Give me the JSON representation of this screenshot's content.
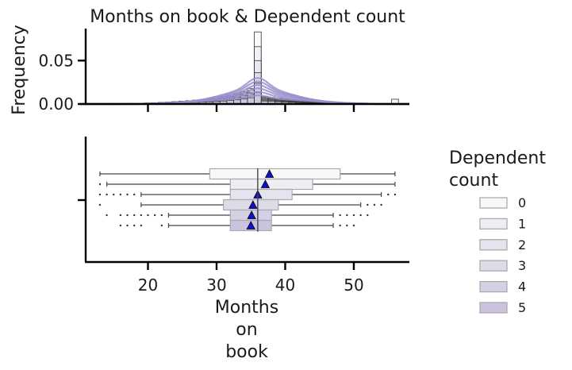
{
  "chart_data": {
    "type": "histogram_boxplot",
    "title": "Months on book & Dependent count",
    "hist": {
      "ylabel": "Frequency",
      "yticks": [
        "0.00",
        "0.05"
      ],
      "ylim": [
        0,
        0.085
      ]
    },
    "box": {
      "xlabel_lines": [
        "Months",
        "on",
        "book"
      ],
      "xticks": [
        20,
        30,
        40,
        50
      ],
      "xlim": [
        10.5,
        58
      ],
      "groups": [
        {
          "name": "0",
          "whislo": 13,
          "q1": 29,
          "med": 36,
          "q3": 48,
          "whishi": 56,
          "mean": 37.7,
          "fliers": []
        },
        {
          "name": "1",
          "whislo": 14,
          "q1": 32,
          "med": 36,
          "q3": 44,
          "whishi": 56,
          "mean": 37.1,
          "fliers": [
            13
          ]
        },
        {
          "name": "2",
          "whislo": 19,
          "q1": 32,
          "med": 36,
          "q3": 41,
          "whishi": 54,
          "mean": 36.0,
          "fliers": [
            13,
            14,
            15,
            16,
            17,
            18,
            55,
            56
          ]
        },
        {
          "name": "3",
          "whislo": 19,
          "q1": 31,
          "med": 36,
          "q3": 39,
          "whishi": 51,
          "mean": 35.3,
          "fliers": [
            13,
            52,
            53,
            54
          ]
        },
        {
          "name": "4",
          "whislo": 23,
          "q1": 32,
          "med": 36,
          "q3": 38,
          "whishi": 47,
          "mean": 35.1,
          "fliers": [
            14,
            16,
            17,
            18,
            19,
            20,
            21,
            22,
            48,
            49,
            50,
            51,
            52
          ]
        },
        {
          "name": "5",
          "whislo": 23,
          "q1": 32,
          "med": 36,
          "q3": 38,
          "whishi": 47,
          "mean": 35.0,
          "fliers": [
            16,
            17,
            18,
            19,
            22,
            48,
            49,
            50
          ]
        }
      ]
    },
    "legend": {
      "title_lines": [
        "Dependent",
        "count"
      ],
      "entries": [
        "0",
        "1",
        "2",
        "3",
        "4",
        "5"
      ],
      "placement": "right"
    },
    "colors": {
      "groups": [
        "#f8f8fa",
        "#eeeef4",
        "#e4e4ee",
        "#dcdbe8",
        "#d4d1e6",
        "#cac2de"
      ],
      "kde": "#9a91cc",
      "mean_marker": "#1010cc",
      "axis": "#000000",
      "box_edge": "#aaaaaa"
    }
  }
}
